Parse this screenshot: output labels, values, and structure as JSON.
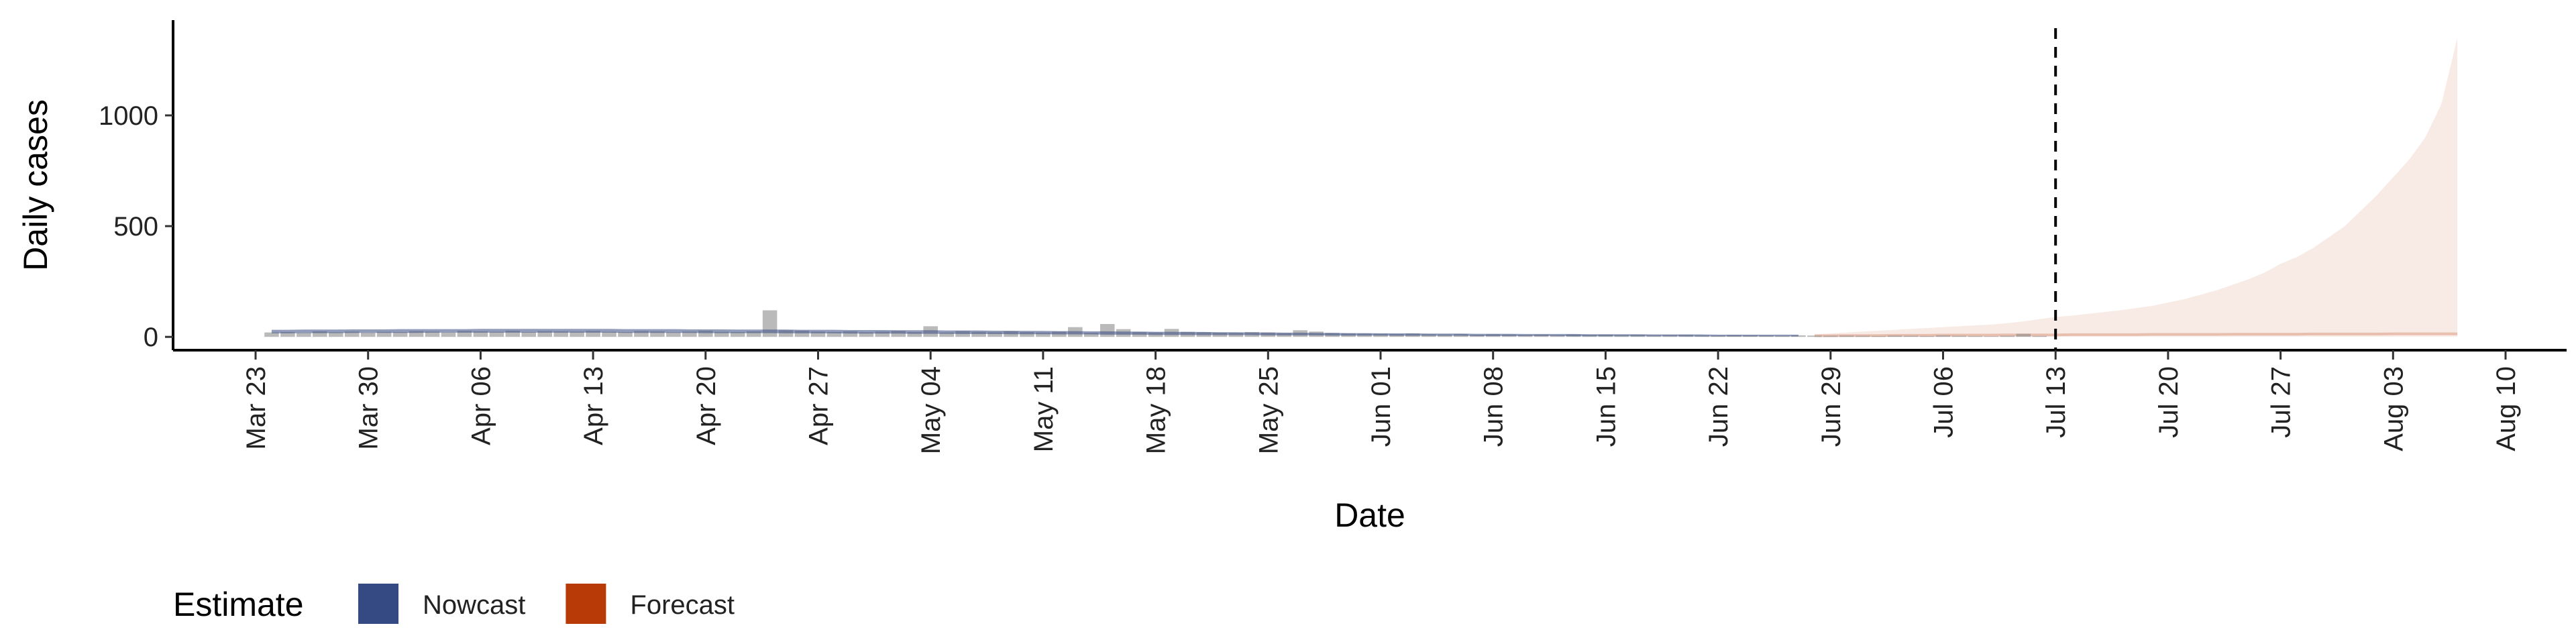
{
  "chart_data": {
    "type": "bar-ribbon",
    "x_label": "Date",
    "y_label": "Daily cases",
    "legend_title": "Estimate",
    "categories": [
      "Mar 23",
      "Mar 24",
      "Mar 25",
      "Mar 26",
      "Mar 27",
      "Mar 28",
      "Mar 29",
      "Mar 30",
      "Mar 31",
      "Apr 01",
      "Apr 02",
      "Apr 03",
      "Apr 04",
      "Apr 05",
      "Apr 06",
      "Apr 07",
      "Apr 08",
      "Apr 09",
      "Apr 10",
      "Apr 11",
      "Apr 12",
      "Apr 13",
      "Apr 14",
      "Apr 15",
      "Apr 16",
      "Apr 17",
      "Apr 18",
      "Apr 19",
      "Apr 20",
      "Apr 21",
      "Apr 22",
      "Apr 23",
      "Apr 24",
      "Apr 25",
      "Apr 26",
      "Apr 27",
      "Apr 28",
      "Apr 29",
      "Apr 30",
      "May 01",
      "May 02",
      "May 03",
      "May 04",
      "May 05",
      "May 06",
      "May 07",
      "May 08",
      "May 09",
      "May 10",
      "May 11",
      "May 12",
      "May 13",
      "May 14",
      "May 15",
      "May 16",
      "May 17",
      "May 18",
      "May 19",
      "May 20",
      "May 21",
      "May 22",
      "May 23",
      "May 24",
      "May 25",
      "May 26",
      "May 27",
      "May 28",
      "May 29",
      "May 30",
      "May 31",
      "Jun 01",
      "Jun 02",
      "Jun 03",
      "Jun 04",
      "Jun 05",
      "Jun 06",
      "Jun 07",
      "Jun 08",
      "Jun 09",
      "Jun 10",
      "Jun 11",
      "Jun 12",
      "Jun 13",
      "Jun 14",
      "Jun 15",
      "Jun 16",
      "Jun 17",
      "Jun 18",
      "Jun 19",
      "Jun 20",
      "Jun 21",
      "Jun 22",
      "Jun 23",
      "Jun 24",
      "Jun 25",
      "Jun 26",
      "Jun 27",
      "Jun 28",
      "Jun 29",
      "Jun 30",
      "Jul 01",
      "Jul 02",
      "Jul 03",
      "Jul 04",
      "Jul 05",
      "Jul 06",
      "Jul 07",
      "Jul 08",
      "Jul 09",
      "Jul 10",
      "Jul 11",
      "Jul 12",
      "Jul 13",
      "Jul 14",
      "Jul 15",
      "Jul 16",
      "Jul 17",
      "Jul 18",
      "Jul 19",
      "Jul 20",
      "Jul 21",
      "Jul 22",
      "Jul 23",
      "Jul 24",
      "Jul 25",
      "Jul 26",
      "Jul 27",
      "Jul 28",
      "Jul 29",
      "Jul 30",
      "Jul 31",
      "Aug 01",
      "Aug 02",
      "Aug 03",
      "Aug 04",
      "Aug 05",
      "Aug 06",
      "Aug 07",
      "Aug 08",
      "Aug 09",
      "Aug 10"
    ],
    "xticks": [
      "Mar 23",
      "Mar 30",
      "Apr 06",
      "Apr 13",
      "Apr 20",
      "Apr 27",
      "May 04",
      "May 11",
      "May 18",
      "May 25",
      "Jun 01",
      "Jun 08",
      "Jun 15",
      "Jun 22",
      "Jun 29",
      "Jul 06",
      "Jul 13",
      "Jul 20",
      "Jul 27",
      "Aug 03",
      "Aug 10"
    ],
    "ylim": [
      -60,
      1430
    ],
    "yticks": [
      0,
      500,
      1000
    ],
    "vline": "Jul 13",
    "observed": {
      "color": "#8c8c8c",
      "values": [
        null,
        20,
        22,
        18,
        25,
        21,
        24,
        19,
        23,
        22,
        26,
        24,
        20,
        27,
        25,
        23,
        28,
        22,
        26,
        25,
        24,
        27,
        23,
        22,
        26,
        25,
        21,
        24,
        28,
        23,
        22,
        25,
        120,
        30,
        28,
        24,
        22,
        25,
        21,
        24,
        27,
        22,
        48,
        20,
        26,
        23,
        21,
        25,
        22,
        20,
        24,
        44,
        19,
        58,
        35,
        22,
        20,
        36,
        23,
        21,
        19,
        18,
        22,
        20,
        17,
        30,
        24,
        18,
        16,
        15,
        14,
        13,
        15,
        12,
        11,
        13,
        10,
        12,
        11,
        9,
        10,
        8,
        11,
        9,
        10,
        8,
        9,
        7,
        8,
        9,
        7,
        6,
        8,
        7,
        6,
        5,
        7,
        6,
        5,
        6,
        5,
        4,
        6,
        5,
        4,
        7,
        5,
        4,
        3,
        5,
        14,
        4,
        null,
        null,
        null,
        null,
        null,
        null,
        null,
        null,
        null,
        null,
        null,
        null,
        null,
        null,
        null,
        null,
        null,
        null,
        null,
        null,
        null,
        null,
        null,
        null,
        null,
        null,
        null,
        null,
        null
      ]
    },
    "series": [
      {
        "name": "Nowcast",
        "color": "#354a82",
        "lower": [
          null,
          16,
          16,
          17,
          17,
          17,
          18,
          18,
          18,
          18,
          18,
          19,
          19,
          19,
          19,
          19,
          19,
          19,
          19,
          19,
          19,
          19,
          19,
          18,
          18,
          18,
          18,
          18,
          17,
          17,
          17,
          17,
          17,
          16,
          16,
          16,
          16,
          15,
          15,
          15,
          15,
          14,
          14,
          14,
          13,
          13,
          13,
          12,
          12,
          12,
          11,
          11,
          11,
          10,
          10,
          10,
          9,
          9,
          9,
          8,
          8,
          8,
          8,
          7,
          7,
          7,
          7,
          6,
          6,
          6,
          6,
          5,
          5,
          5,
          5,
          5,
          4,
          4,
          4,
          4,
          4,
          4,
          3,
          3,
          3,
          3,
          3,
          3,
          3,
          2,
          2,
          2,
          2,
          2,
          2,
          2,
          2,
          null,
          null,
          null,
          null,
          null,
          null,
          null,
          null,
          null,
          null,
          null,
          null,
          null,
          null,
          null,
          null,
          null,
          null,
          null,
          null,
          null,
          null,
          null,
          null,
          null,
          null,
          null,
          null,
          null,
          null,
          null,
          null,
          null,
          null,
          null,
          null,
          null,
          null,
          null,
          null,
          null,
          null,
          null,
          null
        ],
        "upper": [
          null,
          32,
          32,
          33,
          33,
          33,
          34,
          34,
          34,
          35,
          35,
          35,
          35,
          35,
          36,
          36,
          36,
          36,
          36,
          36,
          36,
          36,
          36,
          35,
          35,
          35,
          35,
          34,
          34,
          34,
          33,
          33,
          33,
          33,
          32,
          32,
          32,
          31,
          31,
          31,
          30,
          30,
          30,
          29,
          29,
          29,
          28,
          28,
          27,
          27,
          26,
          26,
          25,
          25,
          24,
          24,
          23,
          23,
          22,
          22,
          21,
          21,
          20,
          20,
          19,
          19,
          18,
          18,
          17,
          17,
          16,
          16,
          16,
          15,
          15,
          15,
          14,
          14,
          14,
          13,
          13,
          13,
          13,
          12,
          12,
          12,
          12,
          11,
          11,
          11,
          11,
          10,
          10,
          10,
          10,
          10,
          10,
          null,
          null,
          null,
          null,
          null,
          null,
          null,
          null,
          null,
          null,
          null,
          null,
          null,
          null,
          null,
          null,
          null,
          null,
          null,
          null,
          null,
          null,
          null,
          null,
          null,
          null,
          null,
          null,
          null,
          null,
          null,
          null,
          null,
          null,
          null,
          null,
          null,
          null,
          null,
          null,
          null,
          null,
          null,
          null
        ]
      },
      {
        "name": "Forecast",
        "color": "#b83a07",
        "lower": [
          null,
          null,
          null,
          null,
          null,
          null,
          null,
          null,
          null,
          null,
          null,
          null,
          null,
          null,
          null,
          null,
          null,
          null,
          null,
          null,
          null,
          null,
          null,
          null,
          null,
          null,
          null,
          null,
          null,
          null,
          null,
          null,
          null,
          null,
          null,
          null,
          null,
          null,
          null,
          null,
          null,
          null,
          null,
          null,
          null,
          null,
          null,
          null,
          null,
          null,
          null,
          null,
          null,
          null,
          null,
          null,
          null,
          null,
          null,
          null,
          null,
          null,
          null,
          null,
          null,
          null,
          null,
          null,
          null,
          null,
          null,
          null,
          null,
          null,
          null,
          null,
          null,
          null,
          null,
          null,
          null,
          null,
          null,
          null,
          null,
          null,
          null,
          null,
          null,
          null,
          null,
          null,
          null,
          null,
          null,
          null,
          null,
          1,
          1,
          1,
          1,
          1,
          1,
          1,
          1,
          1,
          1,
          1,
          1,
          1,
          1,
          1,
          1,
          1,
          1,
          1,
          1,
          1,
          1,
          1,
          1,
          1,
          1,
          1,
          1,
          1,
          1,
          1,
          1,
          1,
          1,
          1,
          1,
          1,
          1,
          1,
          1,
          1,
          null,
          null,
          null
        ],
        "median": [
          null,
          null,
          null,
          null,
          null,
          null,
          null,
          null,
          null,
          null,
          null,
          null,
          null,
          null,
          null,
          null,
          null,
          null,
          null,
          null,
          null,
          null,
          null,
          null,
          null,
          null,
          null,
          null,
          null,
          null,
          null,
          null,
          null,
          null,
          null,
          null,
          null,
          null,
          null,
          null,
          null,
          null,
          null,
          null,
          null,
          null,
          null,
          null,
          null,
          null,
          null,
          null,
          null,
          null,
          null,
          null,
          null,
          null,
          null,
          null,
          null,
          null,
          null,
          null,
          null,
          null,
          null,
          null,
          null,
          null,
          null,
          null,
          null,
          null,
          null,
          null,
          null,
          null,
          null,
          null,
          null,
          null,
          null,
          null,
          null,
          null,
          null,
          null,
          null,
          null,
          null,
          null,
          null,
          null,
          null,
          null,
          null,
          5,
          5,
          6,
          6,
          6,
          7,
          7,
          7,
          8,
          8,
          8,
          8,
          9,
          9,
          9,
          9,
          10,
          10,
          10,
          10,
          10,
          11,
          11,
          11,
          11,
          11,
          12,
          12,
          12,
          12,
          12,
          13,
          13,
          13,
          13,
          13,
          14,
          14,
          14,
          14,
          14,
          null,
          null,
          null
        ],
        "upper": [
          null,
          null,
          null,
          null,
          null,
          null,
          null,
          null,
          null,
          null,
          null,
          null,
          null,
          null,
          null,
          null,
          null,
          null,
          null,
          null,
          null,
          null,
          null,
          null,
          null,
          null,
          null,
          null,
          null,
          null,
          null,
          null,
          null,
          null,
          null,
          null,
          null,
          null,
          null,
          null,
          null,
          null,
          null,
          null,
          null,
          null,
          null,
          null,
          null,
          null,
          null,
          null,
          null,
          null,
          null,
          null,
          null,
          null,
          null,
          null,
          null,
          null,
          null,
          null,
          null,
          null,
          null,
          null,
          null,
          null,
          null,
          null,
          null,
          null,
          null,
          null,
          null,
          null,
          null,
          null,
          null,
          null,
          null,
          null,
          null,
          null,
          null,
          null,
          null,
          null,
          null,
          null,
          null,
          null,
          null,
          null,
          null,
          12,
          16,
          20,
          24,
          28,
          32,
          36,
          40,
          44,
          48,
          52,
          56,
          62,
          70,
          80,
          90,
          96,
          104,
          112,
          120,
          130,
          140,
          155,
          170,
          190,
          210,
          235,
          260,
          290,
          330,
          360,
          400,
          450,
          500,
          570,
          640,
          720,
          800,
          900,
          1050,
          1350,
          null,
          null,
          null
        ]
      }
    ]
  }
}
